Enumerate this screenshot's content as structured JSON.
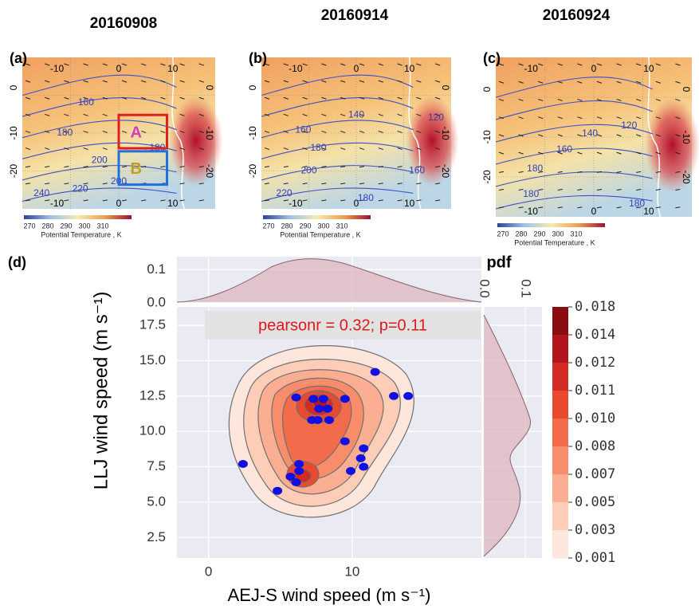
{
  "titles": [
    "20160908",
    "20160914",
    "20160924"
  ],
  "maps": [
    {
      "label": "(a)",
      "top_ticks": [
        "-10",
        "0",
        "10"
      ],
      "left_ticks": [
        "0",
        "-10",
        "-20"
      ],
      "right_ticks": [
        "0",
        "-10",
        "-20"
      ],
      "bottom_ticks": [
        "-10",
        "0",
        "10"
      ],
      "contour_labels": [
        "160",
        "180",
        "200",
        "240",
        "220",
        "200",
        "180"
      ],
      "boxes": [
        "A",
        "B"
      ]
    },
    {
      "label": "(b)",
      "top_ticks": [
        "-10",
        "0",
        "10"
      ],
      "left_ticks": [
        "0",
        "-10",
        "-20"
      ],
      "right_ticks": [
        "0",
        "-10",
        "-20"
      ],
      "bottom_ticks": [
        "-10",
        "0",
        "10"
      ],
      "contour_labels": [
        "140",
        "160",
        "180",
        "200",
        "220",
        "180",
        "160",
        "120"
      ],
      "boxes": []
    },
    {
      "label": "(c)",
      "top_ticks": [
        "-10",
        "0",
        "10"
      ],
      "left_ticks": [
        "0",
        "-10",
        "-20"
      ],
      "right_ticks": [
        "0",
        "-10",
        "-20"
      ],
      "bottom_ticks": [
        "-10",
        "0",
        "10"
      ],
      "contour_labels": [
        "140",
        "120",
        "160",
        "180",
        "180",
        "180"
      ],
      "boxes": []
    }
  ],
  "map_colorbar": {
    "ticks": [
      "270",
      "280",
      "290",
      "300",
      "310"
    ],
    "label": "Potential Temperature , K"
  },
  "panel_d_label": "(d)",
  "chart_data": {
    "type": "scatter",
    "annotation": "pearsonr = 0.32; p=0.11",
    "x_label": "AEJ-S wind speed (m s⁻¹)",
    "y_label": "LLJ wind speed  (m s⁻¹)",
    "marginal_label": "pdf",
    "color": "#1010e0",
    "x": [
      2.4,
      4.8,
      5.7,
      6.1,
      6.3,
      6.3,
      6.1,
      7.3,
      7.7,
      8.0,
      8.3,
      7.6,
      8.4,
      9.5,
      9.5,
      10.8,
      10.6,
      10.8,
      9.9,
      11.6,
      12.9,
      13.9,
      7.2
    ],
    "values": [
      7.7,
      5.8,
      6.8,
      6.4,
      7.2,
      7.7,
      12.4,
      12.3,
      11.6,
      12.3,
      11.6,
      10.8,
      10.8,
      12.3,
      9.3,
      8.8,
      8.1,
      7.5,
      7.2,
      14.2,
      12.5,
      12.5,
      10.8
    ],
    "xlim": [
      -2.2,
      19
    ],
    "xticks": [
      0,
      10
    ],
    "ylim": [
      1.05,
      18.8
    ],
    "yticks": [
      2.5,
      {
        "value": 5,
        "label": "5.0"
      },
      7.5,
      {
        "value": 10,
        "label": "10.0"
      },
      12.5,
      {
        "value": 15,
        "label": "15.0"
      },
      17.5
    ],
    "grid": true,
    "top_pdf_ylim": [
      0,
      0.139
    ],
    "top_pdf_yticks": [
      {
        "value": 0,
        "label": "0.0"
      },
      0.1
    ],
    "right_pdf_xlim": [
      0,
      0.14
    ],
    "right_pdf_xticks": [
      {
        "value": 0,
        "label": "0.0"
      },
      0.1
    ],
    "colorbar": {
      "ticks": [
        0.018,
        0.014,
        0.012,
        0.011,
        {
          "value": 0.01,
          "label": "0.010"
        },
        0.008,
        0.007,
        0.005,
        0.003,
        0.001
      ],
      "colors": [
        "#8b0d12",
        "#b3151c",
        "#d42a24",
        "#e8492f",
        "#f26b4a",
        "#f88d6c",
        "#fbae91",
        "#fdcdb8",
        "#fde6dc"
      ]
    }
  }
}
